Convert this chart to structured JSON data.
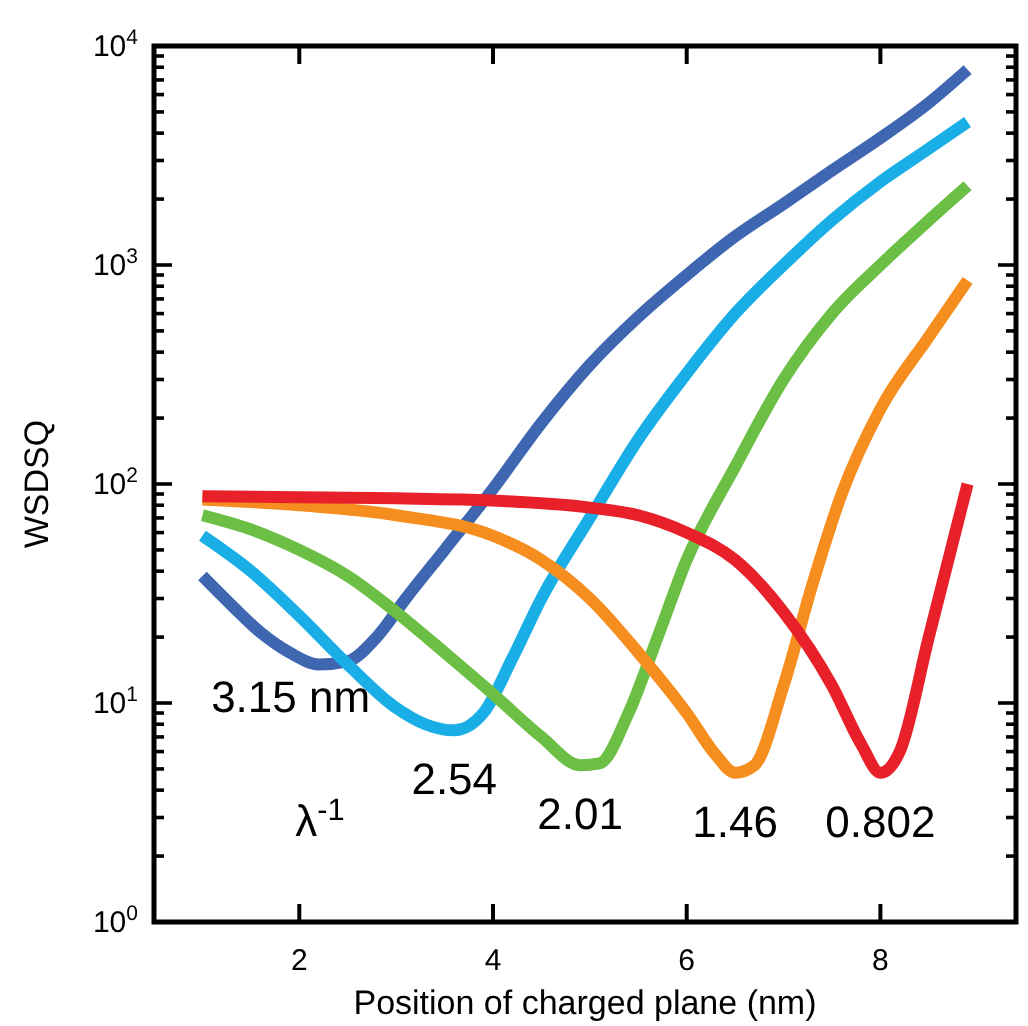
{
  "chart_data": {
    "type": "line",
    "xlabel": "Position of charged plane (nm)",
    "ylabel": "WSDSQ",
    "log": "y",
    "grid": false,
    "marker": "none",
    "line_style": "solid",
    "xlim": [
      0.5,
      9.4
    ],
    "xticks": [
      2,
      4,
      6,
      8
    ],
    "ylim": [
      1,
      10000
    ],
    "yticks": [
      {
        "value": 1,
        "label": "10$^{0}$"
      },
      {
        "value": 2,
        "label": null
      },
      {
        "value": 3,
        "label": null
      },
      {
        "value": 4,
        "label": null
      },
      {
        "value": 5,
        "label": null
      },
      {
        "value": 6,
        "label": null
      },
      {
        "value": 7,
        "label": null
      },
      {
        "value": 8,
        "label": null
      },
      {
        "value": 9,
        "label": null
      },
      {
        "value": 10,
        "label": "10$^{1}$"
      },
      {
        "value": 20,
        "label": null
      },
      {
        "value": 30,
        "label": null
      },
      {
        "value": 40,
        "label": null
      },
      {
        "value": 50,
        "label": null
      },
      {
        "value": 60,
        "label": null
      },
      {
        "value": 70,
        "label": null
      },
      {
        "value": 80,
        "label": null
      },
      {
        "value": 90,
        "label": null
      },
      {
        "value": 100,
        "label": "10$^{2}$"
      },
      {
        "value": 200,
        "label": null
      },
      {
        "value": 300,
        "label": null
      },
      {
        "value": 400,
        "label": null
      },
      {
        "value": 500,
        "label": null
      },
      {
        "value": 600,
        "label": null
      },
      {
        "value": 700,
        "label": null
      },
      {
        "value": 800,
        "label": null
      },
      {
        "value": 900,
        "label": null
      },
      {
        "value": 1000,
        "label": "10$^{3}$"
      },
      {
        "value": 2000,
        "label": null
      },
      {
        "value": 3000,
        "label": null
      },
      {
        "value": 4000,
        "label": null
      },
      {
        "value": 5000,
        "label": null
      },
      {
        "value": 6000,
        "label": null
      },
      {
        "value": 7000,
        "label": null
      },
      {
        "value": 8000,
        "label": null
      },
      {
        "value": 9000,
        "label": null
      },
      {
        "value": 10000,
        "label": "10$^{4}$"
      }
    ],
    "annotations": [
      "λ$^{-1}$"
    ],
    "series": [
      {
        "name": "3.15 nm",
        "color": "#3f66b0",
        "x": [
          1.0,
          1.3,
          1.6,
          1.9,
          2.2,
          2.5,
          2.8,
          3.1,
          3.5,
          4,
          4.5,
          5,
          5.5,
          6,
          6.5,
          7,
          7.5,
          8,
          8.5,
          8.9
        ],
        "values": [
          38,
          28,
          21,
          17,
          15,
          15.5,
          20,
          30,
          50,
          95,
          190,
          350,
          580,
          900,
          1350,
          1900,
          2700,
          3800,
          5500,
          7800
        ]
      },
      {
        "name": "2.54",
        "color": "#1aaee6",
        "x": [
          1.0,
          1.5,
          2,
          2.5,
          3,
          3.3,
          3.6,
          3.9,
          4.2,
          4.5,
          5,
          5.5,
          6,
          6.5,
          7,
          7.5,
          8,
          8.5,
          8.9
        ],
        "values": [
          58,
          40,
          25,
          15,
          9.5,
          8,
          7.5,
          9,
          16,
          30,
          70,
          160,
          320,
          600,
          1000,
          1600,
          2400,
          3400,
          4500
        ]
      },
      {
        "name": "2.01",
        "color": "#6cbf45",
        "x": [
          1.0,
          1.5,
          2,
          2.5,
          3,
          3.5,
          4,
          4.5,
          4.9,
          5.1,
          5.4,
          5.7,
          6,
          6.5,
          7,
          7.5,
          8,
          8.5,
          8.9
        ],
        "values": [
          72,
          62,
          50,
          38,
          26,
          17,
          11,
          7,
          5.2,
          5.3,
          9,
          20,
          45,
          120,
          300,
          600,
          1000,
          1600,
          2300
        ]
      },
      {
        "name": "1.46",
        "color": "#f68e1f",
        "x": [
          1.0,
          2,
          3,
          4,
          4.5,
          5,
          5.5,
          6,
          6.3,
          6.5,
          6.7,
          7,
          7.3,
          7.6,
          8,
          8.5,
          8.9
        ],
        "values": [
          85,
          80,
          72,
          58,
          45,
          30,
          17,
          9,
          5.8,
          4.8,
          5.2,
          12,
          35,
          90,
          220,
          470,
          850
        ]
      },
      {
        "name": "0.802",
        "color": "#e8202a",
        "x": [
          1.0,
          2,
          3,
          4,
          5,
          5.5,
          6,
          6.5,
          7,
          7.5,
          7.8,
          8,
          8.2,
          8.5,
          8.9
        ],
        "values": [
          88,
          87,
          86,
          84,
          78,
          72,
          60,
          45,
          26,
          12,
          6.5,
          4.8,
          6,
          20,
          100
        ]
      }
    ]
  }
}
